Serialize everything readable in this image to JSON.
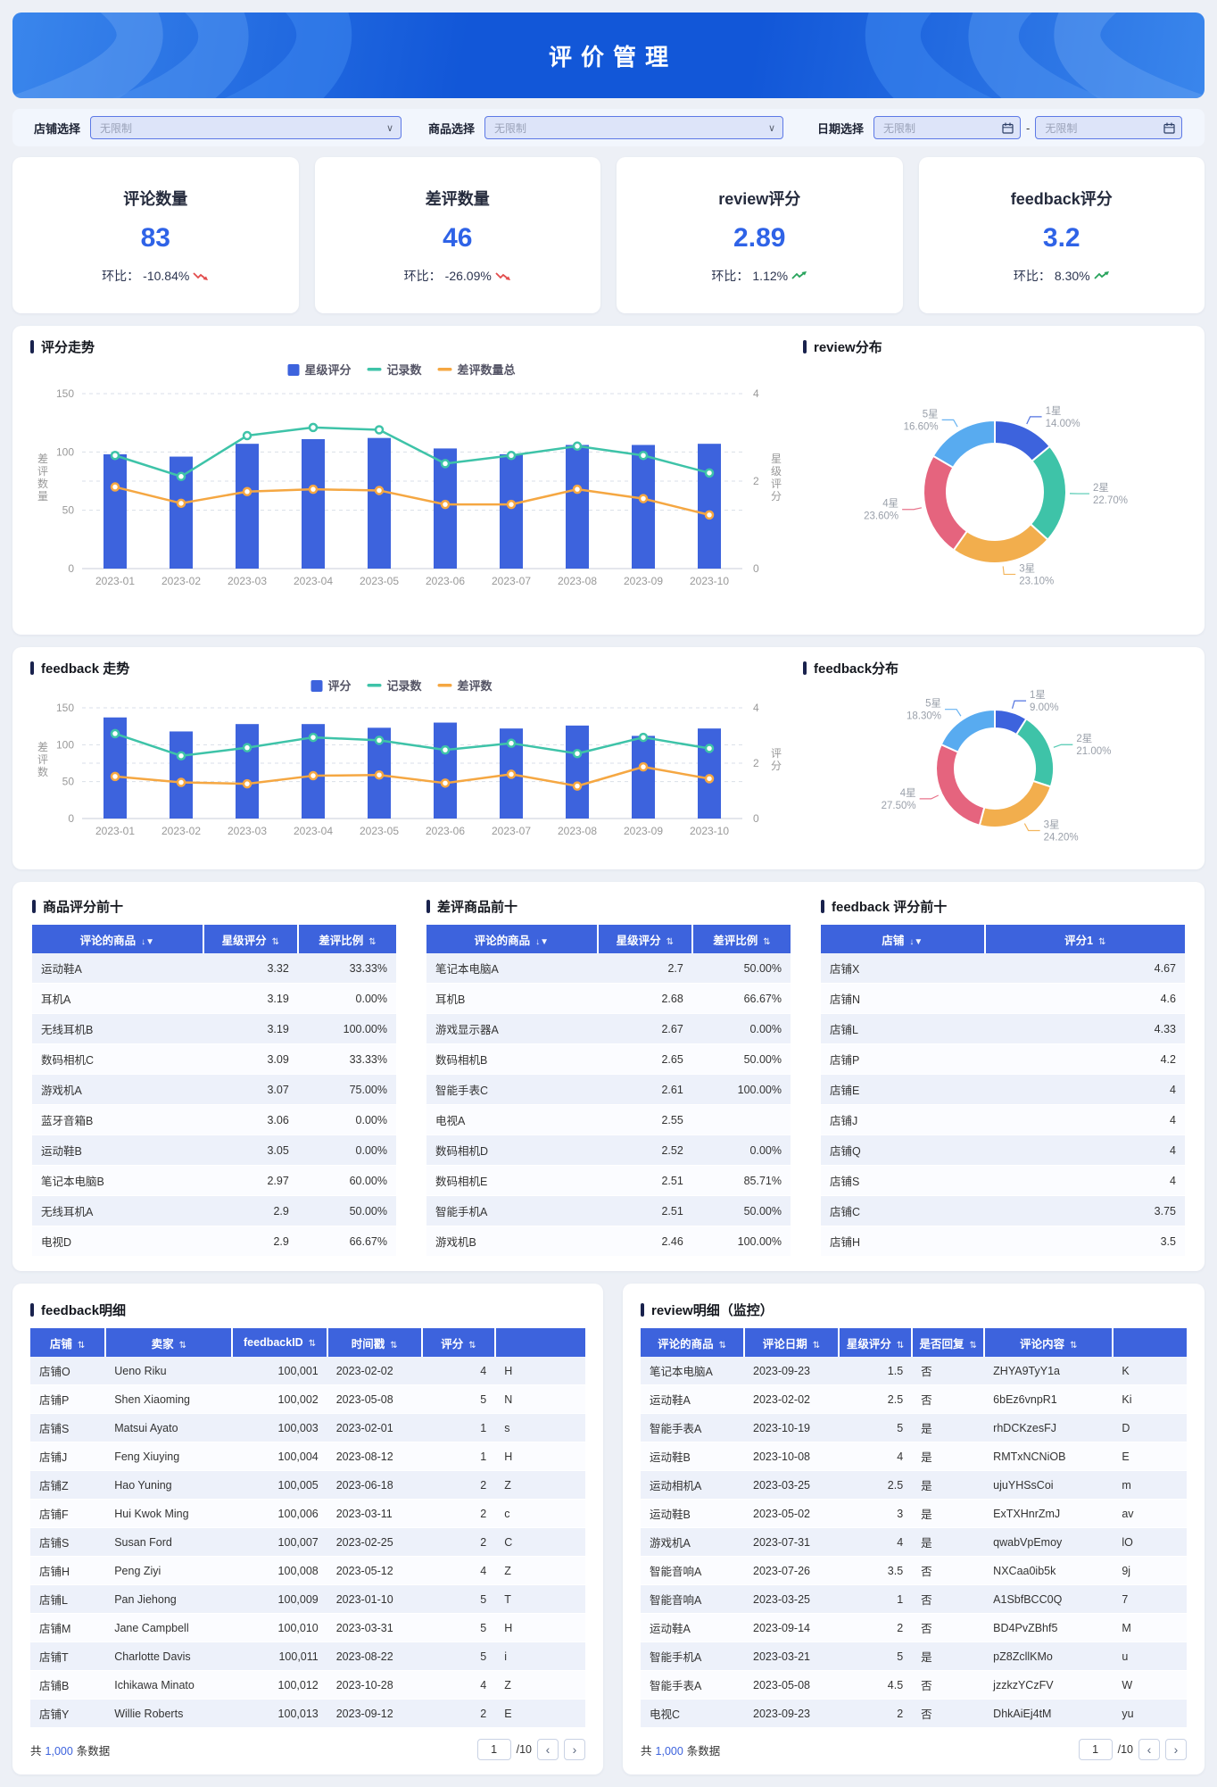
{
  "page": {
    "title": "评价管理"
  },
  "icons": {
    "dropdown": "∨",
    "sort": "⇅",
    "sort_filter": "↓▼",
    "prev": "‹",
    "next": "›"
  },
  "colors": {
    "accent_blue": "#3D63DD",
    "kpi_blue": "#2F63E7",
    "teal": "#3EC3A8",
    "orange": "#F5A742",
    "pink": "#E5647E",
    "sky": "#58ABF0",
    "amber": "#F2AE4D",
    "up_green": "#27A35B",
    "down_red": "#E24C4C"
  },
  "filters": {
    "shop_label": "店铺选择",
    "shop_placeholder": "无限制",
    "product_label": "商品选择",
    "product_placeholder": "无限制",
    "date_label": "日期选择",
    "date_start_placeholder": "无限制",
    "date_end_placeholder": "无限制",
    "date_separator": "-"
  },
  "kpis": [
    {
      "title": "评论数量",
      "value": "83",
      "label": "环比：",
      "change": "-10.84%",
      "direction": "down"
    },
    {
      "title": "差评数量",
      "value": "46",
      "label": "环比：",
      "change": "-26.09%",
      "direction": "down"
    },
    {
      "title": "review评分",
      "value": "2.89",
      "label": "环比：",
      "change": "1.12%",
      "direction": "up"
    },
    {
      "title": "feedback评分",
      "value": "3.2",
      "label": "环比：",
      "change": "8.30%",
      "direction": "up"
    }
  ],
  "chart_data": [
    {
      "id": "review_trend",
      "type": "bar+line",
      "title": "评分走势",
      "categories": [
        "2023-01",
        "2023-02",
        "2023-03",
        "2023-04",
        "2023-05",
        "2023-06",
        "2023-07",
        "2023-08",
        "2023-09",
        "2023-10"
      ],
      "series": [
        {
          "name": "星级评分",
          "type": "bar",
          "color": "#3D63DD",
          "values": [
            98,
            96,
            107,
            111,
            112,
            103,
            98,
            106,
            106,
            107
          ]
        },
        {
          "name": "记录数",
          "type": "line",
          "color": "#3EC3A8",
          "values": [
            97,
            79,
            114,
            121,
            119,
            90,
            97,
            105,
            97,
            82
          ]
        },
        {
          "name": "差评数量总",
          "type": "line",
          "color": "#F5A742",
          "values": [
            70,
            56,
            66,
            68,
            67,
            55,
            55,
            68,
            60,
            46
          ]
        }
      ],
      "ylabel_left": "差评数量",
      "ylabel_right": "星级评分",
      "yticks_left": [
        0,
        50,
        100,
        150
      ],
      "yticks_right": [
        0,
        2,
        4
      ],
      "ylim_left": [
        0,
        150
      ],
      "ylim_right": [
        0,
        4
      ],
      "grid": "dashed",
      "legend_position": "top"
    },
    {
      "id": "review_dist",
      "type": "pie",
      "title": "review分布",
      "slices": [
        {
          "label": "1星",
          "pct": 14.0,
          "pct_label": "14.00%",
          "color": "#3D63DD"
        },
        {
          "label": "2星",
          "pct": 22.7,
          "pct_label": "22.70%",
          "color": "#3EC3A8"
        },
        {
          "label": "3星",
          "pct": 23.1,
          "pct_label": "23.10%",
          "color": "#F2AE4D"
        },
        {
          "label": "4星",
          "pct": 23.6,
          "pct_label": "23.60%",
          "color": "#E5647E"
        },
        {
          "label": "5星",
          "pct": 16.6,
          "pct_label": "16.60%",
          "color": "#58ABF0"
        }
      ]
    },
    {
      "id": "feedback_trend",
      "type": "bar+line",
      "title": "feedback 走势",
      "categories": [
        "2023-01",
        "2023-02",
        "2023-03",
        "2023-04",
        "2023-05",
        "2023-06",
        "2023-07",
        "2023-08",
        "2023-09",
        "2023-10"
      ],
      "series": [
        {
          "name": "评分",
          "type": "bar",
          "color": "#3D63DD",
          "values": [
            137,
            118,
            128,
            128,
            123,
            130,
            122,
            126,
            112,
            122
          ]
        },
        {
          "name": "记录数",
          "type": "line",
          "color": "#3EC3A8",
          "values": [
            115,
            85,
            96,
            110,
            106,
            93,
            102,
            88,
            110,
            95
          ]
        },
        {
          "name": "差评数",
          "type": "line",
          "color": "#F5A742",
          "values": [
            57,
            49,
            47,
            58,
            59,
            48,
            60,
            44,
            70,
            54
          ]
        }
      ],
      "ylabel_left": "差评数",
      "ylabel_right": "评分",
      "yticks_left": [
        0,
        50,
        100,
        150
      ],
      "yticks_right": [
        0,
        2,
        4
      ],
      "ylim_left": [
        0,
        150
      ],
      "ylim_right": [
        0,
        4
      ],
      "grid": "dashed",
      "legend_position": "top"
    },
    {
      "id": "feedback_dist",
      "type": "pie",
      "title": "feedback分布",
      "slices": [
        {
          "label": "1星",
          "pct": 9.0,
          "pct_label": "9.00%",
          "color": "#3D63DD"
        },
        {
          "label": "2星",
          "pct": 21.0,
          "pct_label": "21.00%",
          "color": "#3EC3A8"
        },
        {
          "label": "3星",
          "pct": 24.2,
          "pct_label": "24.20%",
          "color": "#F2AE4D"
        },
        {
          "label": "4星",
          "pct": 27.5,
          "pct_label": "27.50%",
          "color": "#E5647E"
        },
        {
          "label": "5星",
          "pct": 18.3,
          "pct_label": "18.30%",
          "color": "#58ABF0"
        }
      ]
    }
  ],
  "rank_tables": [
    {
      "title": "商品评分前十",
      "columns": [
        {
          "label": "评论的商品",
          "icon": "sort_filter"
        },
        {
          "label": "星级评分",
          "icon": "sort"
        },
        {
          "label": "差评比例",
          "icon": "sort"
        }
      ],
      "rows": [
        [
          "运动鞋A",
          "3.32",
          "33.33%"
        ],
        [
          "耳机A",
          "3.19",
          "0.00%"
        ],
        [
          "无线耳机B",
          "3.19",
          "100.00%"
        ],
        [
          "数码相机C",
          "3.09",
          "33.33%"
        ],
        [
          "游戏机A",
          "3.07",
          "75.00%"
        ],
        [
          "蓝牙音箱B",
          "3.06",
          "0.00%"
        ],
        [
          "运动鞋B",
          "3.05",
          "0.00%"
        ],
        [
          "笔记本电脑B",
          "2.97",
          "60.00%"
        ],
        [
          "无线耳机A",
          "2.9",
          "50.00%"
        ],
        [
          "电视D",
          "2.9",
          "66.67%"
        ]
      ]
    },
    {
      "title": "差评商品前十",
      "columns": [
        {
          "label": "评论的商品",
          "icon": "sort_filter"
        },
        {
          "label": "星级评分",
          "icon": "sort"
        },
        {
          "label": "差评比例",
          "icon": "sort"
        }
      ],
      "rows": [
        [
          "笔记本电脑A",
          "2.7",
          "50.00%"
        ],
        [
          "耳机B",
          "2.68",
          "66.67%"
        ],
        [
          "游戏显示器A",
          "2.67",
          "0.00%"
        ],
        [
          "数码相机B",
          "2.65",
          "50.00%"
        ],
        [
          "智能手表C",
          "2.61",
          "100.00%"
        ],
        [
          "电视A",
          "2.55",
          ""
        ],
        [
          "数码相机D",
          "2.52",
          "0.00%"
        ],
        [
          "数码相机E",
          "2.51",
          "85.71%"
        ],
        [
          "智能手机A",
          "2.51",
          "50.00%"
        ],
        [
          "游戏机B",
          "2.46",
          "100.00%"
        ]
      ]
    },
    {
      "title": "feedback 评分前十",
      "columns": [
        {
          "label": "店铺",
          "icon": "sort_filter"
        },
        {
          "label": "评分1",
          "icon": "sort"
        }
      ],
      "rows": [
        [
          "店铺X",
          "4.67"
        ],
        [
          "店铺N",
          "4.6"
        ],
        [
          "店铺L",
          "4.33"
        ],
        [
          "店铺P",
          "4.2"
        ],
        [
          "店铺E",
          "4"
        ],
        [
          "店铺J",
          "4"
        ],
        [
          "店铺Q",
          "4"
        ],
        [
          "店铺S",
          "4"
        ],
        [
          "店铺C",
          "3.75"
        ],
        [
          "店铺H",
          "3.5"
        ]
      ]
    }
  ],
  "details": [
    {
      "title": "feedback明细",
      "columns": [
        {
          "label": "店铺",
          "icon": "sort"
        },
        {
          "label": "卖家",
          "icon": "sort"
        },
        {
          "label": "feedbackID",
          "icon": "sort"
        },
        {
          "label": "时间戳",
          "icon": "sort"
        },
        {
          "label": "评分",
          "icon": "sort"
        },
        {
          "label": "",
          "icon": ""
        }
      ],
      "rows": [
        [
          "店铺O",
          "Ueno Riku",
          "100,001",
          "2023-02-02",
          "4",
          "H"
        ],
        [
          "店铺P",
          "Shen Xiaoming",
          "100,002",
          "2023-05-08",
          "5",
          "N"
        ],
        [
          "店铺S",
          "Matsui Ayato",
          "100,003",
          "2023-02-01",
          "1",
          "s"
        ],
        [
          "店铺J",
          "Feng Xiuying",
          "100,004",
          "2023-08-12",
          "1",
          "H"
        ],
        [
          "店铺Z",
          "Hao Yuning",
          "100,005",
          "2023-06-18",
          "2",
          "Z"
        ],
        [
          "店铺F",
          "Hui Kwok Ming",
          "100,006",
          "2023-03-11",
          "2",
          "c"
        ],
        [
          "店铺S",
          "Susan Ford",
          "100,007",
          "2023-02-25",
          "2",
          "C"
        ],
        [
          "店铺H",
          "Peng Ziyi",
          "100,008",
          "2023-05-12",
          "4",
          "Z"
        ],
        [
          "店铺L",
          "Pan Jiehong",
          "100,009",
          "2023-01-10",
          "5",
          "T"
        ],
        [
          "店铺M",
          "Jane Campbell",
          "100,010",
          "2023-03-31",
          "5",
          "H"
        ],
        [
          "店铺T",
          "Charlotte Davis",
          "100,011",
          "2023-08-22",
          "5",
          "i"
        ],
        [
          "店铺B",
          "Ichikawa Minato",
          "100,012",
          "2023-10-28",
          "4",
          "Z"
        ],
        [
          "店铺Y",
          "Willie Roberts",
          "100,013",
          "2023-09-12",
          "2",
          "E"
        ]
      ]
    },
    {
      "title": "review明细（监控）",
      "columns": [
        {
          "label": "评论的商品",
          "icon": "sort"
        },
        {
          "label": "评论日期",
          "icon": "sort"
        },
        {
          "label": "星级评分",
          "icon": "sort"
        },
        {
          "label": "是否回复",
          "icon": "sort"
        },
        {
          "label": "评论内容",
          "icon": "sort"
        },
        {
          "label": "",
          "icon": ""
        }
      ],
      "rows": [
        [
          "笔记本电脑A",
          "2023-09-23",
          "1.5",
          "否",
          "ZHYA9TyY1a",
          "K"
        ],
        [
          "运动鞋A",
          "2023-02-02",
          "2.5",
          "否",
          "6bEz6vnpR1",
          "Ki"
        ],
        [
          "智能手表A",
          "2023-10-19",
          "5",
          "是",
          "rhDCKzesFJ",
          "D"
        ],
        [
          "运动鞋B",
          "2023-10-08",
          "4",
          "是",
          "RMTxNCNiOB",
          "E"
        ],
        [
          "运动相机A",
          "2023-03-25",
          "2.5",
          "是",
          "ujuYHSsCoi",
          "m"
        ],
        [
          "运动鞋B",
          "2023-05-02",
          "3",
          "是",
          "ExTXHnrZmJ",
          "av"
        ],
        [
          "游戏机A",
          "2023-07-31",
          "4",
          "是",
          "qwabVpEmoy",
          "lO"
        ],
        [
          "智能音响A",
          "2023-07-26",
          "3.5",
          "否",
          "NXCaa0ib5k",
          "9j"
        ],
        [
          "智能音响A",
          "2023-03-25",
          "1",
          "否",
          "A1SbfBCC0Q",
          "7"
        ],
        [
          "运动鞋A",
          "2023-09-14",
          "2",
          "否",
          "BD4PvZBhf5",
          "M"
        ],
        [
          "智能手机A",
          "2023-03-21",
          "5",
          "是",
          "pZ8ZcllKMo",
          "u"
        ],
        [
          "智能手表A",
          "2023-05-08",
          "4.5",
          "否",
          "jzzkzYCzFV",
          "W"
        ],
        [
          "电视C",
          "2023-09-23",
          "2",
          "否",
          "DhkAiEj4tM",
          "yu"
        ]
      ]
    }
  ],
  "pagination": {
    "total_prefix": "共",
    "total": "1,000",
    "total_suffix": "条数据",
    "page": "1",
    "page_suffix": "/10"
  }
}
